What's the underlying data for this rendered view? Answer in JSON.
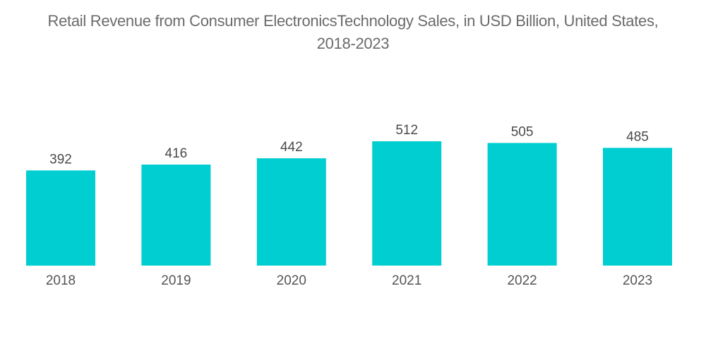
{
  "chart_data": {
    "type": "bar",
    "title": "Retail Revenue from Consumer ElectronicsTechnology Sales, in USD Billion, United States,",
    "title_line2": "2018-2023",
    "categories": [
      "2018",
      "2019",
      "2020",
      "2021",
      "2022",
      "2023"
    ],
    "values": [
      392,
      416,
      442,
      512,
      505,
      485
    ],
    "data_labels": [
      "392",
      "416",
      "442",
      "512",
      "505",
      "485"
    ],
    "xlabel": "",
    "ylabel": "",
    "ylim": [
      0,
      512
    ],
    "grid": false,
    "legend": "none",
    "bar_color": "#00ced1"
  }
}
